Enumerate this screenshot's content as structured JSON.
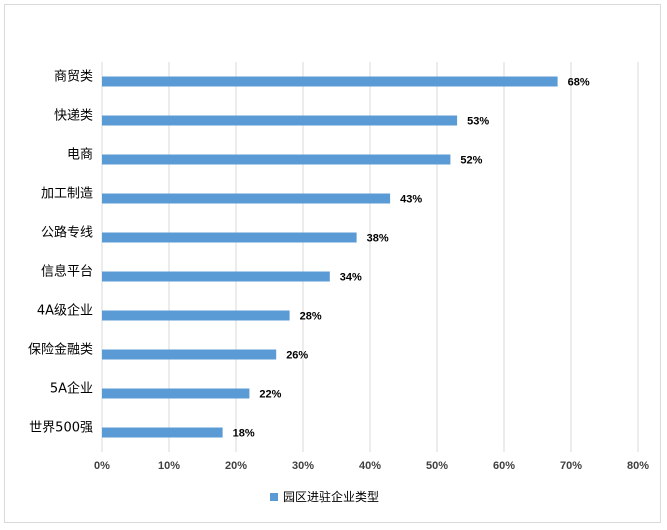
{
  "chart_data": {
    "type": "bar",
    "orientation": "horizontal",
    "categories": [
      "商贸类",
      "快递类",
      "电商",
      "加工制造",
      "公路专线",
      "信息平台",
      "4A级企业",
      "保险金融类",
      "5A企业",
      "世界500强"
    ],
    "series": [
      {
        "name": "园区进驻企业类型",
        "values": [
          68,
          53,
          52,
          43,
          38,
          34,
          28,
          26,
          22,
          18
        ],
        "labels": [
          "68%",
          "53%",
          "52%",
          "43%",
          "38%",
          "34%",
          "28%",
          "26%",
          "22%",
          "18%"
        ]
      }
    ],
    "xticks": [
      "0%",
      "10%",
      "20%",
      "30%",
      "40%",
      "50%",
      "60%",
      "70%",
      "80%"
    ],
    "xlim": [
      0,
      80
    ],
    "grid": true,
    "legend_position": "bottom",
    "bar_color": "#5b9bd5",
    "grid_color": "#d9d9d9"
  }
}
